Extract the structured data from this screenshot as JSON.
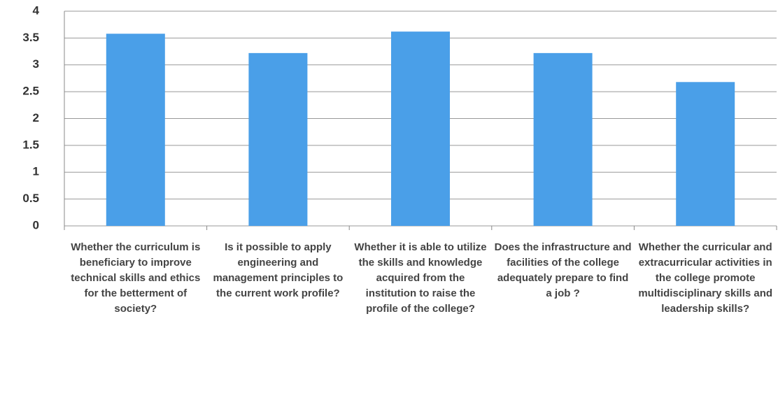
{
  "chart_data": {
    "type": "bar",
    "categories": [
      "Whether the curriculum is beneficiary to improve technical skills and ethics for the betterment of society?",
      "Is it possible to apply engineering and management principles to the current work profile?",
      "Whether it is able to utilize the skills and knowledge acquired from the institution to raise the profile of the college?",
      "Does the infrastructure and facilities of the college adequately prepare to find a job ?",
      "Whether the curricular and extracurricular activities in the college promote multidisciplinary skills and leadership skills?"
    ],
    "values": [
      3.58,
      3.22,
      3.62,
      3.22,
      2.68
    ],
    "color": "#4a9fe8",
    "ylim": [
      0,
      4
    ],
    "yticks": [
      0,
      0.5,
      1,
      1.5,
      2,
      2.5,
      3,
      3.5,
      4
    ],
    "grid": true
  }
}
